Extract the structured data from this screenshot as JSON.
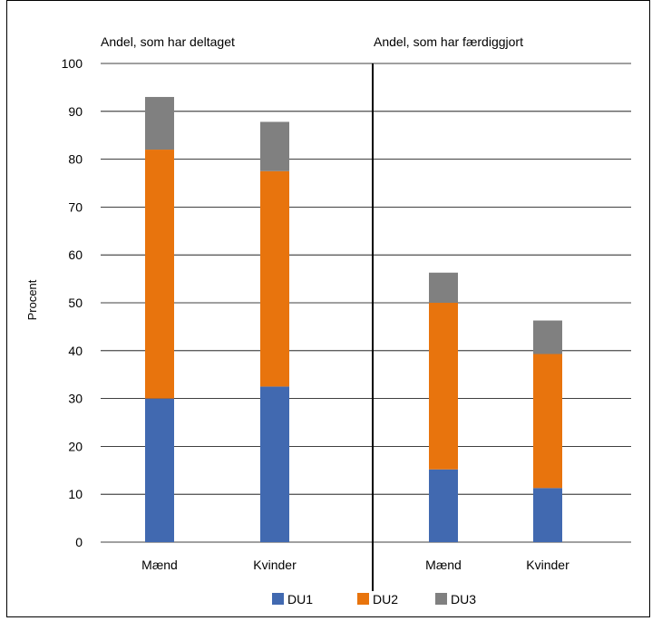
{
  "chart_data": {
    "type": "bar",
    "stacked": true,
    "title": "",
    "xlabel": "",
    "ylabel": "Procent",
    "ylim": [
      0,
      100
    ],
    "yticks": [
      0,
      10,
      20,
      30,
      40,
      50,
      60,
      70,
      80,
      90,
      100
    ],
    "grid": true,
    "legend_position": "bottom",
    "panels": [
      {
        "label": "Andel, som har deltaget",
        "categories": [
          "Mænd",
          "Kvinder"
        ]
      },
      {
        "label": "Andel, som har færdiggjort",
        "categories": [
          "Mænd",
          "Kvinder"
        ]
      }
    ],
    "categories": [
      "Mænd",
      "Kvinder",
      "Mænd",
      "Kvinder"
    ],
    "series": [
      {
        "name": "DU1",
        "color": "#4169B0",
        "values": [
          30,
          32.5,
          15.2,
          11.3
        ]
      },
      {
        "name": "DU2",
        "color": "#E8740D",
        "values": [
          52,
          45,
          34.8,
          28
        ]
      },
      {
        "name": "DU3",
        "color": "#808080",
        "values": [
          11,
          10.3,
          6.3,
          7
        ]
      }
    ]
  }
}
